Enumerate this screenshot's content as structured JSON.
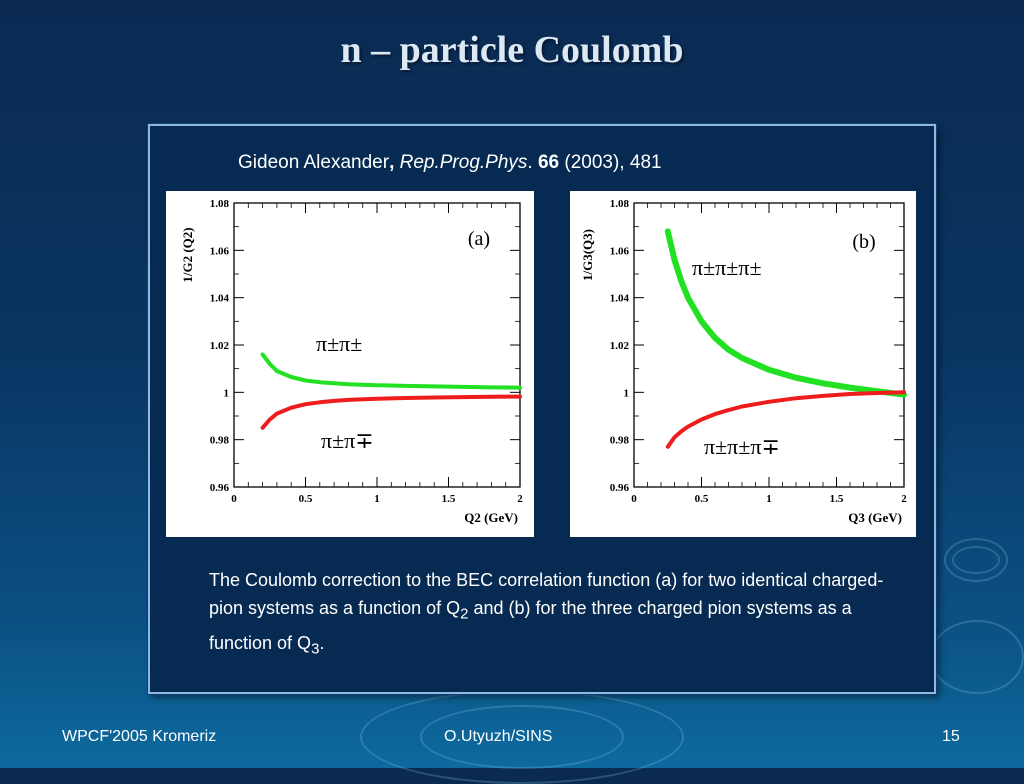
{
  "slide": {
    "title": "n – particle Coulomb",
    "citation": {
      "author": "Gideon Alexander",
      "comma": ",",
      "journal": "Rep.Prog.Phys",
      "dot": ".",
      "volume": "66",
      "rest": "(2003), 481"
    },
    "caption": {
      "part1": "The Coulomb correction to the BEC correlation function (a) for two identical charged-pion systems as a function of Q",
      "sub1": "2",
      "part2": " and (b) for the three charged pion systems as a function of Q",
      "sub2": "3",
      "part3": "."
    },
    "footer": {
      "left": "WPCF'2005 Kromeriz",
      "center": "O.Utyuzh/SINS",
      "right": "15"
    }
  },
  "chart_data": [
    {
      "type": "line",
      "panel_label": "(a)",
      "xlabel": "Q2 (GeV)",
      "ylabel": "1/G2 (Q2)",
      "xlim": [
        0,
        2
      ],
      "ylim": [
        0.96,
        1.08
      ],
      "xticks": [
        "0",
        "0.5",
        "1",
        "1.5",
        "2"
      ],
      "yticks": [
        "0.96",
        "0.98",
        "1",
        "1.02",
        "1.04",
        "1.06",
        "1.08"
      ],
      "series": [
        {
          "name": "π±π±",
          "color": "#22e022",
          "x": [
            0.2,
            0.25,
            0.3,
            0.4,
            0.5,
            0.6,
            0.7,
            0.8,
            1.0,
            1.2,
            1.4,
            1.6,
            1.8,
            2.0
          ],
          "y": [
            1.016,
            1.012,
            1.009,
            1.0065,
            1.005,
            1.0043,
            1.0038,
            1.0034,
            1.003,
            1.0027,
            1.0025,
            1.0023,
            1.0021,
            1.002
          ]
        },
        {
          "name": "π±π∓",
          "color": "#ee1c1c",
          "x": [
            0.2,
            0.25,
            0.3,
            0.4,
            0.5,
            0.6,
            0.7,
            0.8,
            1.0,
            1.2,
            1.4,
            1.6,
            1.8,
            2.0
          ],
          "y": [
            0.985,
            0.9885,
            0.991,
            0.9935,
            0.995,
            0.9958,
            0.9964,
            0.9968,
            0.9973,
            0.9976,
            0.9978,
            0.998,
            0.9981,
            0.9982
          ]
        }
      ]
    },
    {
      "type": "line",
      "panel_label": "(b)",
      "xlabel": "Q3 (GeV)",
      "ylabel": "1/G3(Q3)",
      "xlim": [
        0,
        2
      ],
      "ylim": [
        0.96,
        1.08
      ],
      "xticks": [
        "0",
        "0.5",
        "1",
        "1.5",
        "2"
      ],
      "yticks": [
        "0.96",
        "0.98",
        "1",
        "1.02",
        "1.04",
        "1.06",
        "1.08"
      ],
      "series": [
        {
          "name": "π±π±π±",
          "color": "#22e022",
          "x": [
            0.25,
            0.3,
            0.35,
            0.4,
            0.5,
            0.6,
            0.7,
            0.8,
            1.0,
            1.2,
            1.4,
            1.6,
            1.8,
            2.0
          ],
          "y": [
            1.068,
            1.056,
            1.047,
            1.04,
            1.03,
            1.023,
            1.018,
            1.0145,
            1.0095,
            1.0062,
            1.0038,
            1.002,
            1.0005,
            0.999
          ]
        },
        {
          "name": "π±π±π∓",
          "color": "#ee1c1c",
          "x": [
            0.25,
            0.3,
            0.35,
            0.4,
            0.5,
            0.6,
            0.7,
            0.8,
            1.0,
            1.2,
            1.4,
            1.6,
            1.8,
            2.0
          ],
          "y": [
            0.977,
            0.981,
            0.9835,
            0.9855,
            0.9885,
            0.9908,
            0.9925,
            0.994,
            0.996,
            0.9975,
            0.9985,
            0.9993,
            0.9997,
            1.0
          ]
        }
      ]
    }
  ]
}
